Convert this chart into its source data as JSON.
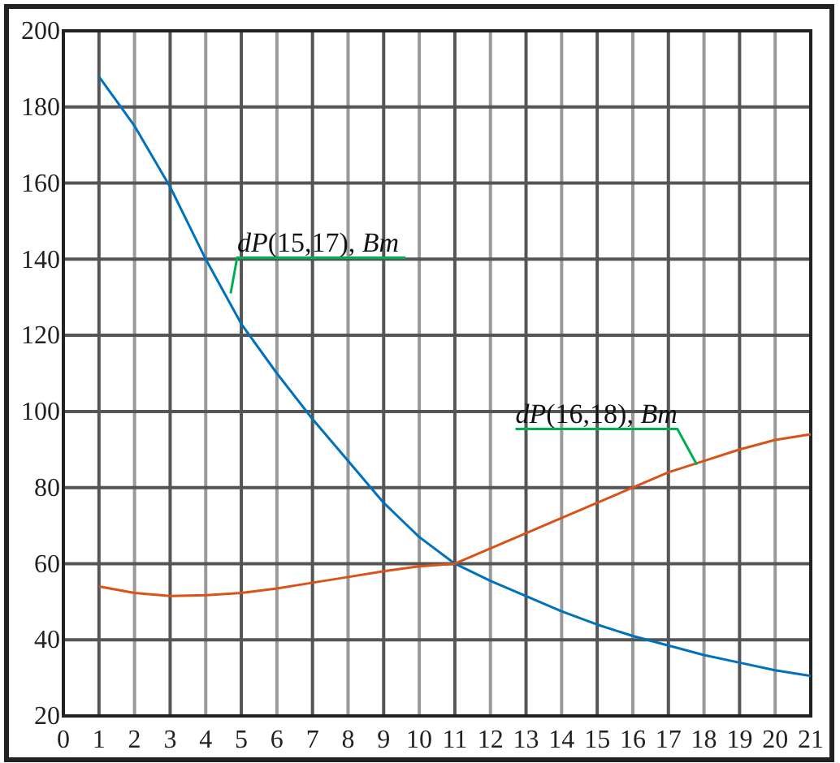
{
  "chart_data": {
    "type": "line",
    "x": [
      1,
      2,
      3,
      4,
      5,
      6,
      7,
      8,
      9,
      10,
      11,
      12,
      13,
      14,
      15,
      16,
      17,
      18,
      19,
      20,
      21
    ],
    "series": [
      {
        "color": "#0072bd",
        "values": [
          188,
          175,
          159,
          140,
          123,
          110,
          98,
          87,
          76,
          67,
          60,
          55.5,
          51.5,
          47.5,
          44,
          41,
          38.5,
          36,
          34,
          32,
          30.5
        ]
      },
      {
        "color": "#d95319",
        "values": [
          54,
          52.3,
          51.5,
          51.7,
          52.3,
          53.5,
          55,
          56.5,
          58,
          59.3,
          60,
          64,
          68,
          72,
          76,
          80,
          84,
          87,
          90,
          92.5,
          94
        ]
      }
    ],
    "annotations": [
      {
        "text": "dP(15,17), Bm",
        "x": 4.7,
        "y": 131
      },
      {
        "text": "dP(16,18), Bm",
        "x": 17.8,
        "y": 86
      }
    ],
    "xlim": [
      0,
      21
    ],
    "xticks": [
      0,
      1,
      2,
      3,
      4,
      5,
      6,
      7,
      8,
      9,
      10,
      11,
      12,
      13,
      14,
      15,
      16,
      17,
      18,
      19,
      20,
      21
    ],
    "ylim": [
      20,
      200
    ],
    "yticks": [
      20,
      40,
      60,
      80,
      100,
      120,
      140,
      160,
      180,
      200
    ],
    "grid": true,
    "marker": "none",
    "line_style": "solid"
  }
}
